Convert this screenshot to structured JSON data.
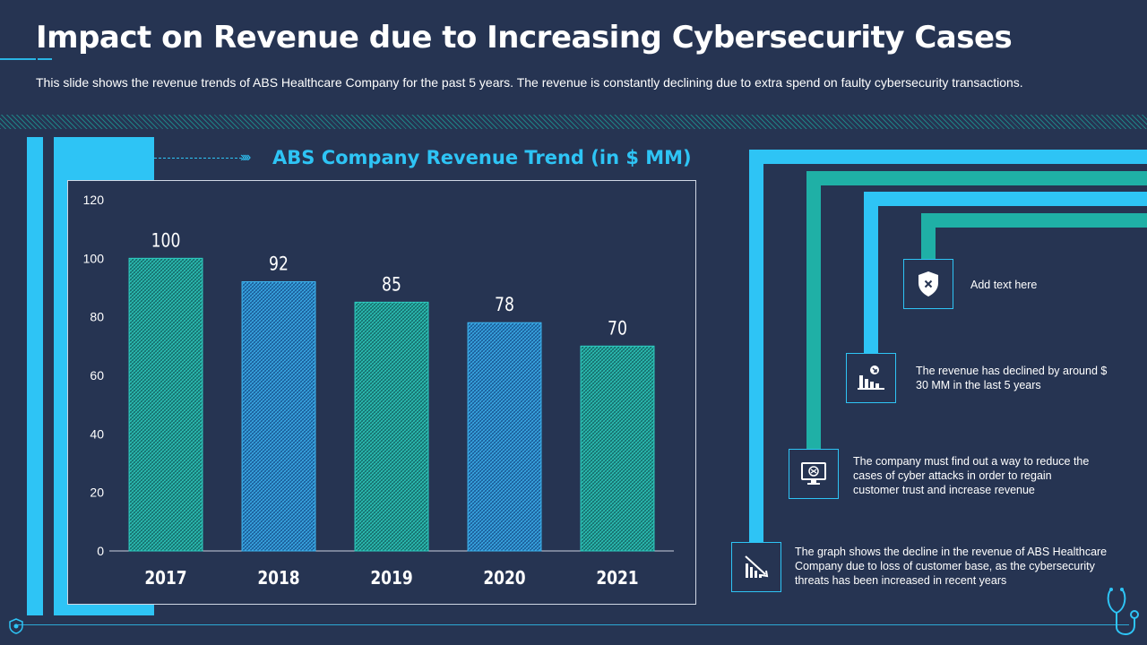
{
  "header": {
    "title": "Impact on Revenue due to Increasing Cybersecurity Cases",
    "subtitle": "This slide shows the revenue trends of ABS Healthcare Company for the past 5 years. The revenue is constantly declining due to extra spend on faulty cybersecurity transactions."
  },
  "chart_data": {
    "type": "bar",
    "title": "ABS Company Revenue Trend (in $ MM)",
    "categories": [
      "2017",
      "2018",
      "2019",
      "2020",
      "2021"
    ],
    "values": [
      100,
      92,
      85,
      78,
      70
    ],
    "data_labels": [
      "100",
      "92",
      "85",
      "78",
      "70"
    ],
    "ylim": [
      0,
      120
    ],
    "yticks": [
      0,
      20,
      40,
      60,
      80,
      100,
      120
    ],
    "ytick_labels": [
      "0",
      "20",
      "40",
      "60",
      "80",
      "100",
      "120"
    ],
    "xlabel": "",
    "ylabel": "",
    "grid": false,
    "bar_colors": [
      "#1fa89f",
      "#2a9ee0",
      "#1fa89f",
      "#2a9ee0",
      "#1fa89f"
    ]
  },
  "insights": {
    "items": [
      {
        "icon": "shield-x-icon",
        "text": "Add text here"
      },
      {
        "icon": "declining-chart-icon",
        "text": "The revenue  has declined by around  $ 30 MM in the last 5 years"
      },
      {
        "icon": "computer-alert-icon",
        "text": "The company must find out a way to reduce the cases of cyber attacks in order to regain customer trust and increase revenue"
      },
      {
        "icon": "downtrend-bars-icon",
        "text": "The graph  shows the decline in the revenue  of ABS Healthcare  Company due to loss of customer base, as the cybersecurity threats has been increased in recent years"
      }
    ]
  },
  "colors": {
    "background": "#263452",
    "accent_blue": "#2ec4f5",
    "accent_teal": "#1fb0a6"
  }
}
